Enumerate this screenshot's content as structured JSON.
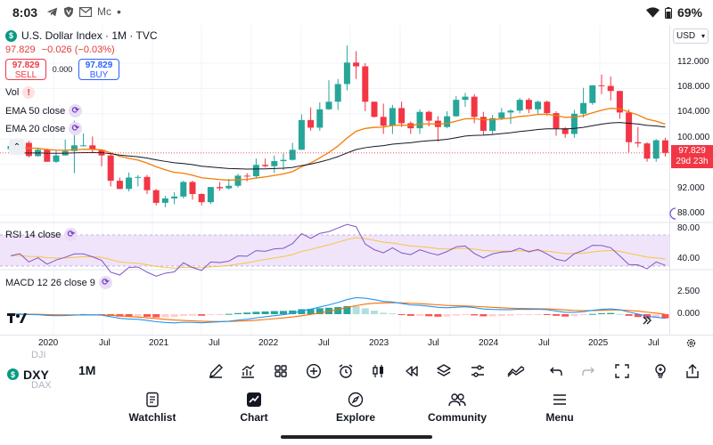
{
  "status_bar": {
    "time": "8:03",
    "notification_text": "Mc",
    "battery": "69%"
  },
  "legend": {
    "title": "U.S. Dollar Index · 1M · TVC",
    "logo_letter": "$",
    "last": "97.829",
    "change": "−0.026 (−0.03%)",
    "sell_price": "97.829",
    "sell_label": "SELL",
    "spread": "0.000",
    "buy_price": "97.829",
    "buy_label": "BUY"
  },
  "indicators": {
    "vol": "Vol",
    "ema50": "EMA 50 close",
    "ema20": "EMA 20 close",
    "rsi": "RSI 14 close",
    "macd": "MACD 12 26 close 9"
  },
  "price_axis": {
    "currency": "USD",
    "labels": [
      "112.000",
      "108.000",
      "104.000",
      "100.000",
      "92.000",
      "88.000"
    ],
    "last_price": "97.829",
    "countdown": "29d 23h",
    "rsi_labels": [
      "80.00",
      "40.00"
    ],
    "macd_labels": [
      "2.500",
      "0.000"
    ]
  },
  "time_axis": [
    "2020",
    "Jul",
    "2021",
    "Jul",
    "2022",
    "Jul",
    "2023",
    "Jul",
    "2024",
    "Jul",
    "2025",
    "Jul"
  ],
  "toolbar": {
    "symbol": "DXY",
    "symbol_above": "DJI",
    "symbol_below": "DAX",
    "interval": "1M"
  },
  "nav": [
    "Watchlist",
    "Chart",
    "Explore",
    "Community",
    "Menu"
  ],
  "colors": {
    "up": "#26a69a",
    "down": "#f23645",
    "ema50": "#131722",
    "ema20": "#f57c00",
    "rsi": "#7e57c2",
    "macd": "#2196f3",
    "signal": "#ff6d00"
  },
  "chart_data": {
    "type": "candlestick",
    "title": "U.S. Dollar Index · 1M · TVC",
    "x_range": [
      "2019-08",
      "2025-08"
    ],
    "y_range": [
      86,
      115
    ],
    "candles": [
      {
        "t": "2019-08",
        "o": 98.4,
        "h": 99.4,
        "l": 97.6,
        "c": 98.9
      },
      {
        "t": "2019-09",
        "o": 98.9,
        "h": 99.7,
        "l": 98.2,
        "c": 99.4
      },
      {
        "t": "2019-10",
        "o": 99.4,
        "h": 99.7,
        "l": 97.1,
        "c": 97.3
      },
      {
        "t": "2019-11",
        "o": 97.3,
        "h": 98.6,
        "l": 97.2,
        "c": 98.3
      },
      {
        "t": "2019-12",
        "o": 98.3,
        "h": 98.5,
        "l": 96.4,
        "c": 96.4
      },
      {
        "t": "2020-01",
        "o": 96.4,
        "h": 98.2,
        "l": 96.2,
        "c": 97.4
      },
      {
        "t": "2020-02",
        "o": 97.4,
        "h": 99.9,
        "l": 97.4,
        "c": 98.1
      },
      {
        "t": "2020-03",
        "o": 98.1,
        "h": 102.9,
        "l": 94.6,
        "c": 99.0
      },
      {
        "t": "2020-04",
        "o": 99.0,
        "h": 100.9,
        "l": 98.8,
        "c": 99.0
      },
      {
        "t": "2020-05",
        "o": 99.0,
        "h": 100.4,
        "l": 97.8,
        "c": 98.3
      },
      {
        "t": "2020-06",
        "o": 98.3,
        "h": 98.4,
        "l": 95.7,
        "c": 97.4
      },
      {
        "t": "2020-07",
        "o": 97.4,
        "h": 97.8,
        "l": 92.5,
        "c": 93.4
      },
      {
        "t": "2020-08",
        "o": 93.4,
        "h": 93.9,
        "l": 92.1,
        "c": 92.1
      },
      {
        "t": "2020-09",
        "o": 92.1,
        "h": 94.7,
        "l": 91.7,
        "c": 93.9
      },
      {
        "t": "2020-10",
        "o": 93.9,
        "h": 94.3,
        "l": 92.5,
        "c": 94.0
      },
      {
        "t": "2020-11",
        "o": 94.0,
        "h": 94.3,
        "l": 91.3,
        "c": 91.9
      },
      {
        "t": "2020-12",
        "o": 91.9,
        "h": 92.1,
        "l": 89.5,
        "c": 89.9
      },
      {
        "t": "2021-01",
        "o": 89.9,
        "h": 91.0,
        "l": 89.2,
        "c": 90.6
      },
      {
        "t": "2021-02",
        "o": 90.6,
        "h": 91.6,
        "l": 89.7,
        "c": 90.9
      },
      {
        "t": "2021-03",
        "o": 90.9,
        "h": 93.4,
        "l": 90.6,
        "c": 93.2
      },
      {
        "t": "2021-04",
        "o": 93.2,
        "h": 93.4,
        "l": 90.4,
        "c": 91.3
      },
      {
        "t": "2021-05",
        "o": 91.3,
        "h": 91.4,
        "l": 89.5,
        "c": 90.0
      },
      {
        "t": "2021-06",
        "o": 90.0,
        "h": 92.4,
        "l": 89.7,
        "c": 92.4
      },
      {
        "t": "2021-07",
        "o": 92.4,
        "h": 93.2,
        "l": 91.8,
        "c": 92.2
      },
      {
        "t": "2021-08",
        "o": 92.2,
        "h": 93.7,
        "l": 92.0,
        "c": 92.6
      },
      {
        "t": "2021-09",
        "o": 92.6,
        "h": 94.5,
        "l": 92.3,
        "c": 94.2
      },
      {
        "t": "2021-10",
        "o": 94.2,
        "h": 94.6,
        "l": 93.3,
        "c": 94.1
      },
      {
        "t": "2021-11",
        "o": 94.1,
        "h": 96.9,
        "l": 93.9,
        "c": 95.9
      },
      {
        "t": "2021-12",
        "o": 95.9,
        "h": 96.9,
        "l": 95.5,
        "c": 95.7
      },
      {
        "t": "2022-01",
        "o": 95.7,
        "h": 97.4,
        "l": 94.6,
        "c": 96.5
      },
      {
        "t": "2022-02",
        "o": 96.5,
        "h": 97.7,
        "l": 95.1,
        "c": 96.7
      },
      {
        "t": "2022-03",
        "o": 96.7,
        "h": 99.4,
        "l": 96.6,
        "c": 98.3
      },
      {
        "t": "2022-04",
        "o": 98.3,
        "h": 103.9,
        "l": 98.3,
        "c": 103.0
      },
      {
        "t": "2022-05",
        "o": 103.0,
        "h": 105.0,
        "l": 101.3,
        "c": 101.8
      },
      {
        "t": "2022-06",
        "o": 101.8,
        "h": 105.8,
        "l": 101.3,
        "c": 104.7
      },
      {
        "t": "2022-07",
        "o": 104.7,
        "h": 109.3,
        "l": 104.6,
        "c": 105.9
      },
      {
        "t": "2022-08",
        "o": 105.9,
        "h": 109.5,
        "l": 104.6,
        "c": 108.7
      },
      {
        "t": "2022-09",
        "o": 108.7,
        "h": 114.8,
        "l": 107.7,
        "c": 112.1
      },
      {
        "t": "2022-10",
        "o": 112.1,
        "h": 113.9,
        "l": 109.5,
        "c": 111.5
      },
      {
        "t": "2022-11",
        "o": 111.5,
        "h": 112.0,
        "l": 104.4,
        "c": 105.9
      },
      {
        "t": "2022-12",
        "o": 105.9,
        "h": 105.9,
        "l": 103.4,
        "c": 103.5
      },
      {
        "t": "2023-01",
        "o": 103.5,
        "h": 105.6,
        "l": 100.8,
        "c": 102.1
      },
      {
        "t": "2023-02",
        "o": 102.1,
        "h": 105.4,
        "l": 100.8,
        "c": 104.9
      },
      {
        "t": "2023-03",
        "o": 104.9,
        "h": 105.9,
        "l": 101.9,
        "c": 102.5
      },
      {
        "t": "2023-04",
        "o": 102.5,
        "h": 102.8,
        "l": 100.8,
        "c": 101.7
      },
      {
        "t": "2023-05",
        "o": 101.7,
        "h": 104.7,
        "l": 100.8,
        "c": 104.3
      },
      {
        "t": "2023-06",
        "o": 104.3,
        "h": 104.5,
        "l": 102.0,
        "c": 102.9
      },
      {
        "t": "2023-07",
        "o": 102.9,
        "h": 103.6,
        "l": 99.6,
        "c": 101.9
      },
      {
        "t": "2023-08",
        "o": 101.9,
        "h": 104.4,
        "l": 101.7,
        "c": 103.6
      },
      {
        "t": "2023-09",
        "o": 103.6,
        "h": 106.8,
        "l": 103.5,
        "c": 106.2
      },
      {
        "t": "2023-10",
        "o": 106.2,
        "h": 107.3,
        "l": 105.1,
        "c": 106.7
      },
      {
        "t": "2023-11",
        "o": 106.7,
        "h": 107.1,
        "l": 102.5,
        "c": 103.5
      },
      {
        "t": "2023-12",
        "o": 103.5,
        "h": 104.3,
        "l": 100.6,
        "c": 101.3
      },
      {
        "t": "2024-01",
        "o": 101.3,
        "h": 103.8,
        "l": 100.8,
        "c": 103.3
      },
      {
        "t": "2024-02",
        "o": 103.3,
        "h": 104.9,
        "l": 103.0,
        "c": 104.2
      },
      {
        "t": "2024-03",
        "o": 104.2,
        "h": 104.7,
        "l": 102.4,
        "c": 104.5
      },
      {
        "t": "2024-04",
        "o": 104.5,
        "h": 106.5,
        "l": 104.1,
        "c": 106.2
      },
      {
        "t": "2024-05",
        "o": 106.2,
        "h": 106.5,
        "l": 104.1,
        "c": 104.7
      },
      {
        "t": "2024-06",
        "o": 104.7,
        "h": 106.1,
        "l": 104.0,
        "c": 105.9
      },
      {
        "t": "2024-07",
        "o": 105.9,
        "h": 106.1,
        "l": 103.7,
        "c": 104.1
      },
      {
        "t": "2024-08",
        "o": 104.1,
        "h": 104.4,
        "l": 100.5,
        "c": 101.7
      },
      {
        "t": "2024-09",
        "o": 101.7,
        "h": 101.9,
        "l": 100.2,
        "c": 100.8
      },
      {
        "t": "2024-10",
        "o": 100.8,
        "h": 104.6,
        "l": 100.2,
        "c": 104.0
      },
      {
        "t": "2024-11",
        "o": 104.0,
        "h": 108.1,
        "l": 103.4,
        "c": 105.7
      },
      {
        "t": "2024-12",
        "o": 105.7,
        "h": 108.5,
        "l": 105.4,
        "c": 108.5
      },
      {
        "t": "2025-01",
        "o": 108.5,
        "h": 110.2,
        "l": 107.1,
        "c": 108.4
      },
      {
        "t": "2025-02",
        "o": 108.4,
        "h": 109.9,
        "l": 106.1,
        "c": 107.6
      },
      {
        "t": "2025-03",
        "o": 107.6,
        "h": 107.6,
        "l": 103.2,
        "c": 104.2
      },
      {
        "t": "2025-04",
        "o": 104.2,
        "h": 104.7,
        "l": 97.9,
        "c": 99.5
      },
      {
        "t": "2025-05",
        "o": 99.5,
        "h": 101.9,
        "l": 98.7,
        "c": 99.3
      },
      {
        "t": "2025-06",
        "o": 99.3,
        "h": 99.5,
        "l": 96.4,
        "c": 96.9
      },
      {
        "t": "2025-07",
        "o": 96.9,
        "h": 100.0,
        "l": 96.4,
        "c": 99.8
      },
      {
        "t": "2025-08",
        "o": 99.8,
        "h": 100.2,
        "l": 97.2,
        "c": 97.8
      }
    ]
  }
}
